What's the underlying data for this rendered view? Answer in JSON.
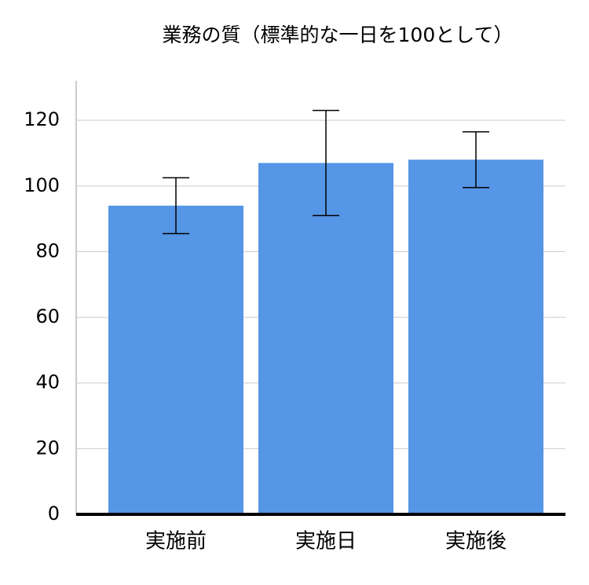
{
  "chart_data": {
    "type": "bar",
    "title": "業務の質（標準的な一日を100として）",
    "categories": [
      "実施前",
      "実施日",
      "実施後"
    ],
    "values": [
      94,
      107,
      108
    ],
    "errors": [
      8.5,
      16,
      8.5
    ],
    "color": "#5596e6",
    "ylim": [
      0,
      132
    ],
    "yticks": [
      0,
      20,
      40,
      60,
      80,
      100,
      120
    ],
    "grid": true
  }
}
